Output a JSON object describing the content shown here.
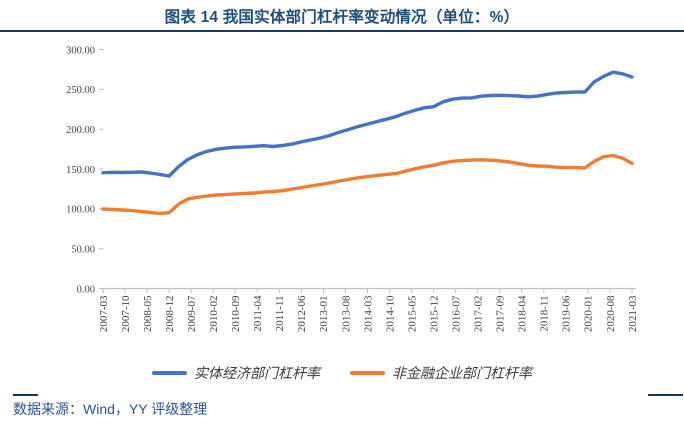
{
  "header": {
    "title": "图表 14 我国实体部门杠杆率变动情况（单位：%）"
  },
  "footer": {
    "source": "数据来源：Wind，YY 评级整理"
  },
  "colors": {
    "title": "#1F4E79",
    "rule": "#17375E",
    "source_text": "#2E5395",
    "axis": "#BFBFBF",
    "tick_label": "#444444",
    "series_blue": "#4472C4",
    "series_orange": "#ED7D31"
  },
  "chart_data": {
    "type": "line",
    "title": "图表 14 我国实体部门杠杆率变动情况（单位：%）",
    "xlabel": "",
    "ylabel": "",
    "ylim": [
      0,
      300
    ],
    "y_ticks": [
      0,
      50,
      100,
      150,
      200,
      250,
      300
    ],
    "y_tick_decimals": 2,
    "grid": false,
    "legend_position": "bottom",
    "x": [
      "2007-03",
      "2007-06",
      "2007-09",
      "2007-12",
      "2008-03",
      "2008-06",
      "2008-09",
      "2008-12",
      "2009-03",
      "2009-06",
      "2009-09",
      "2009-12",
      "2010-03",
      "2010-06",
      "2010-09",
      "2010-12",
      "2011-03",
      "2011-06",
      "2011-09",
      "2011-12",
      "2012-03",
      "2012-06",
      "2012-09",
      "2012-12",
      "2013-03",
      "2013-06",
      "2013-09",
      "2013-12",
      "2014-03",
      "2014-06",
      "2014-09",
      "2014-12",
      "2015-03",
      "2015-06",
      "2015-09",
      "2015-12",
      "2016-03",
      "2016-06",
      "2016-09",
      "2016-12",
      "2017-03",
      "2017-06",
      "2017-09",
      "2017-12",
      "2018-03",
      "2018-06",
      "2018-09",
      "2018-12",
      "2019-03",
      "2019-06",
      "2019-09",
      "2019-12",
      "2020-03",
      "2020-06",
      "2020-09",
      "2020-12",
      "2021-03"
    ],
    "x_tick_labels": [
      "2007-03",
      "2007-10",
      "2008-05",
      "2008-12",
      "2009-07",
      "2010-02",
      "2010-09",
      "2011-04",
      "2011-11",
      "2012-06",
      "2013-01",
      "2013-08",
      "2014-03",
      "2014-10",
      "2015-05",
      "2015-12",
      "2016-07",
      "2017-02",
      "2017-09",
      "2018-04",
      "2018-11",
      "2019-06",
      "2020-01",
      "2020-08",
      "2021-03"
    ],
    "series": [
      {
        "name": "实体经济部门杠杆率",
        "color": "#4472C4",
        "values": [
          145.4,
          145.8,
          145.6,
          145.9,
          146.2,
          145.0,
          143.2,
          141.2,
          153.0,
          162.0,
          168.0,
          172.2,
          174.7,
          176.2,
          177.4,
          177.8,
          178.5,
          179.3,
          178.3,
          179.5,
          181.2,
          184.2,
          186.5,
          188.9,
          192.0,
          196.2,
          199.6,
          203.3,
          206.4,
          209.5,
          212.5,
          215.7,
          220.0,
          223.5,
          226.8,
          228.2,
          234.4,
          237.6,
          239.0,
          239.3,
          241.4,
          242.3,
          242.5,
          242.1,
          241.6,
          240.6,
          241.5,
          243.7,
          245.4,
          246.0,
          246.6,
          246.5,
          259.3,
          266.4,
          271.5,
          269.5,
          265.5
        ]
      },
      {
        "name": "非金融企业部门杠杆率",
        "color": "#ED7D31",
        "values": [
          99.8,
          99.2,
          98.5,
          97.8,
          96.8,
          95.4,
          94.3,
          95.2,
          106.0,
          112.5,
          114.5,
          116.1,
          117.4,
          117.9,
          118.7,
          119.3,
          119.9,
          121.0,
          121.8,
          122.7,
          124.6,
          126.7,
          128.7,
          130.6,
          132.6,
          134.9,
          137.0,
          138.9,
          140.5,
          141.8,
          143.2,
          144.2,
          147.2,
          150.2,
          152.8,
          154.6,
          157.6,
          159.7,
          160.6,
          161.2,
          161.6,
          161.0,
          160.2,
          158.9,
          156.8,
          154.8,
          153.8,
          153.5,
          152.3,
          151.8,
          152.0,
          151.2,
          159.5,
          165.5,
          167.0,
          163.5,
          157.0
        ]
      }
    ]
  }
}
